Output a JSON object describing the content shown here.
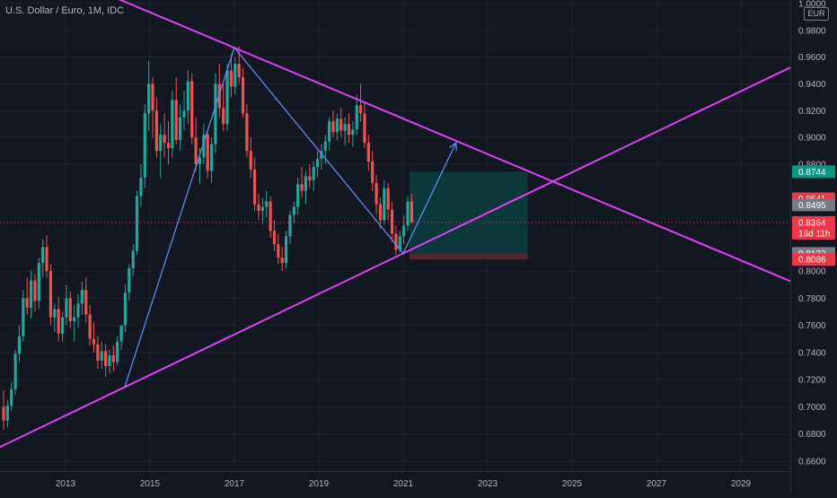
{
  "chart_data": {
    "type": "candlestick",
    "title": "U.S. Dollar / Euro, 1M, IDC",
    "currency": "EUR",
    "x_ticks": [
      "2013",
      "2015",
      "2017",
      "2019",
      "2021",
      "2023",
      "2025",
      "2027",
      "2029"
    ],
    "x_range": [
      2011.5,
      2030.2
    ],
    "y_ticks": [
      "0.6600",
      "0.6800",
      "0.7000",
      "0.7200",
      "0.7400",
      "0.7600",
      "0.7800",
      "0.8000",
      "0.8800",
      "0.9000",
      "0.9200",
      "0.9400",
      "0.9600",
      "0.9800",
      "1.0000"
    ],
    "ylim": [
      0.655,
      1.0
    ],
    "current_price": 0.8364,
    "countdown": "16d 11h",
    "price_labels": [
      {
        "value": "0.8744",
        "color": "#089981"
      },
      {
        "value": "0.8541",
        "color": "#f23645"
      },
      {
        "value": "0.8495",
        "color": "#787b86"
      },
      {
        "value": "0.8297",
        "color": "#089981"
      },
      {
        "value": "0.8132",
        "color": "#787b86"
      },
      {
        "value": "0.8086",
        "color": "#f23645"
      }
    ],
    "colors": {
      "up": "#26a69a",
      "down": "#ef5350",
      "trendline": "#e040fb",
      "zigzag": "#5b8def",
      "target_zone": "#0b4a4a",
      "stop_zone": "#5a2a30",
      "current_price": "#f23645"
    },
    "candles_monthly_ohlc": [
      [
        0.7,
        0.712,
        0.683,
        0.69
      ],
      [
        0.69,
        0.705,
        0.685,
        0.701
      ],
      [
        0.701,
        0.718,
        0.697,
        0.713
      ],
      [
        0.713,
        0.742,
        0.709,
        0.739
      ],
      [
        0.739,
        0.76,
        0.733,
        0.752
      ],
      [
        0.752,
        0.786,
        0.748,
        0.78
      ],
      [
        0.78,
        0.795,
        0.768,
        0.773
      ],
      [
        0.773,
        0.8,
        0.765,
        0.793
      ],
      [
        0.793,
        0.798,
        0.77,
        0.778
      ],
      [
        0.778,
        0.81,
        0.772,
        0.806
      ],
      [
        0.806,
        0.824,
        0.795,
        0.818
      ],
      [
        0.818,
        0.827,
        0.795,
        0.8
      ],
      [
        0.8,
        0.805,
        0.76,
        0.766
      ],
      [
        0.766,
        0.776,
        0.755,
        0.772
      ],
      [
        0.772,
        0.781,
        0.748,
        0.754
      ],
      [
        0.754,
        0.77,
        0.748,
        0.766
      ],
      [
        0.766,
        0.79,
        0.76,
        0.78
      ],
      [
        0.78,
        0.785,
        0.758,
        0.763
      ],
      [
        0.763,
        0.775,
        0.748,
        0.766
      ],
      [
        0.766,
        0.783,
        0.758,
        0.776
      ],
      [
        0.776,
        0.792,
        0.768,
        0.786
      ],
      [
        0.786,
        0.795,
        0.762,
        0.768
      ],
      [
        0.768,
        0.775,
        0.745,
        0.75
      ],
      [
        0.75,
        0.762,
        0.74,
        0.746
      ],
      [
        0.746,
        0.752,
        0.728,
        0.734
      ],
      [
        0.734,
        0.748,
        0.728,
        0.741
      ],
      [
        0.741,
        0.746,
        0.722,
        0.73
      ],
      [
        0.73,
        0.742,
        0.725,
        0.738
      ],
      [
        0.738,
        0.745,
        0.726,
        0.733
      ],
      [
        0.733,
        0.752,
        0.73,
        0.748
      ],
      [
        0.748,
        0.76,
        0.742,
        0.76
      ],
      [
        0.76,
        0.79,
        0.755,
        0.784
      ],
      [
        0.784,
        0.805,
        0.778,
        0.802
      ],
      [
        0.802,
        0.82,
        0.796,
        0.815
      ],
      [
        0.815,
        0.86,
        0.812,
        0.856
      ],
      [
        0.856,
        0.88,
        0.848,
        0.87
      ],
      [
        0.87,
        0.925,
        0.862,
        0.918
      ],
      [
        0.918,
        0.957,
        0.905,
        0.94
      ],
      [
        0.94,
        0.945,
        0.9,
        0.92
      ],
      [
        0.92,
        0.93,
        0.885,
        0.89
      ],
      [
        0.89,
        0.91,
        0.87,
        0.902
      ],
      [
        0.902,
        0.918,
        0.885,
        0.896
      ],
      [
        0.896,
        0.912,
        0.88,
        0.892
      ],
      [
        0.892,
        0.935,
        0.885,
        0.928
      ],
      [
        0.928,
        0.945,
        0.895,
        0.898
      ],
      [
        0.898,
        0.925,
        0.89,
        0.915
      ],
      [
        0.915,
        0.935,
        0.905,
        0.92
      ],
      [
        0.92,
        0.95,
        0.91,
        0.942
      ],
      [
        0.942,
        0.948,
        0.895,
        0.9
      ],
      [
        0.9,
        0.915,
        0.875,
        0.88
      ],
      [
        0.88,
        0.892,
        0.865,
        0.885
      ],
      [
        0.885,
        0.91,
        0.88,
        0.902
      ],
      [
        0.902,
        0.905,
        0.87,
        0.875
      ],
      [
        0.875,
        0.9,
        0.866,
        0.895
      ],
      [
        0.895,
        0.948,
        0.888,
        0.94
      ],
      [
        0.94,
        0.955,
        0.915,
        0.922
      ],
      [
        0.922,
        0.94,
        0.905,
        0.91
      ],
      [
        0.91,
        0.955,
        0.905,
        0.95
      ],
      [
        0.95,
        0.962,
        0.93,
        0.938
      ],
      [
        0.938,
        0.96,
        0.932,
        0.955
      ],
      [
        0.955,
        0.968,
        0.94,
        0.945
      ],
      [
        0.945,
        0.952,
        0.915,
        0.918
      ],
      [
        0.918,
        0.925,
        0.885,
        0.89
      ],
      [
        0.89,
        0.9,
        0.87,
        0.876
      ],
      [
        0.876,
        0.885,
        0.845,
        0.85
      ],
      [
        0.85,
        0.858,
        0.838,
        0.845
      ],
      [
        0.845,
        0.855,
        0.835,
        0.848
      ],
      [
        0.848,
        0.86,
        0.84,
        0.852
      ],
      [
        0.852,
        0.856,
        0.825,
        0.83
      ],
      [
        0.83,
        0.838,
        0.815,
        0.82
      ],
      [
        0.82,
        0.828,
        0.805,
        0.81
      ],
      [
        0.81,
        0.818,
        0.8,
        0.806
      ],
      [
        0.806,
        0.83,
        0.802,
        0.826
      ],
      [
        0.826,
        0.845,
        0.82,
        0.842
      ],
      [
        0.842,
        0.852,
        0.836,
        0.848
      ],
      [
        0.848,
        0.87,
        0.842,
        0.865
      ],
      [
        0.865,
        0.878,
        0.855,
        0.86
      ],
      [
        0.86,
        0.875,
        0.85,
        0.871
      ],
      [
        0.871,
        0.88,
        0.862,
        0.868
      ],
      [
        0.868,
        0.882,
        0.86,
        0.878
      ],
      [
        0.878,
        0.89,
        0.87,
        0.884
      ],
      [
        0.884,
        0.895,
        0.876,
        0.89
      ],
      [
        0.89,
        0.902,
        0.88,
        0.897
      ],
      [
        0.897,
        0.915,
        0.89,
        0.912
      ],
      [
        0.912,
        0.92,
        0.9,
        0.904
      ],
      [
        0.904,
        0.918,
        0.898,
        0.914
      ],
      [
        0.914,
        0.922,
        0.9,
        0.905
      ],
      [
        0.905,
        0.915,
        0.894,
        0.91
      ],
      [
        0.91,
        0.918,
        0.896,
        0.902
      ],
      [
        0.902,
        0.912,
        0.893,
        0.906
      ],
      [
        0.906,
        0.932,
        0.902,
        0.924
      ],
      [
        0.924,
        0.94,
        0.912,
        0.918
      ],
      [
        0.918,
        0.926,
        0.892,
        0.896
      ],
      [
        0.896,
        0.902,
        0.875,
        0.882
      ],
      [
        0.882,
        0.89,
        0.86,
        0.866
      ],
      [
        0.866,
        0.872,
        0.842,
        0.85
      ],
      [
        0.85,
        0.855,
        0.832,
        0.838
      ],
      [
        0.838,
        0.868,
        0.835,
        0.862
      ],
      [
        0.862,
        0.866,
        0.838,
        0.846
      ],
      [
        0.846,
        0.852,
        0.822,
        0.828
      ],
      [
        0.828,
        0.834,
        0.812,
        0.816
      ],
      [
        0.816,
        0.83,
        0.814,
        0.826
      ],
      [
        0.826,
        0.842,
        0.82,
        0.834
      ],
      [
        0.834,
        0.856,
        0.83,
        0.852
      ],
      [
        0.852,
        0.858,
        0.836,
        0.8364
      ]
    ]
  }
}
